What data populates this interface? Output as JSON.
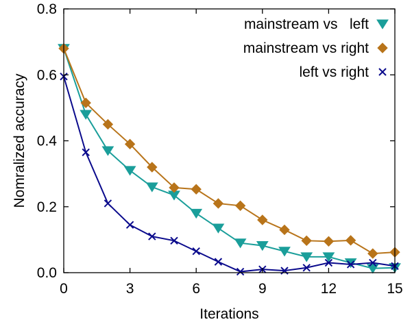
{
  "chart_data": {
    "type": "line",
    "xlabel": "Iterations",
    "ylabel": "Nomralized accuracy",
    "xlim": [
      0,
      15
    ],
    "ylim": [
      0,
      0.8
    ],
    "xticks": [
      0,
      3,
      6,
      9,
      12,
      15
    ],
    "xtick_labels": [
      "0",
      "3",
      "6",
      "9",
      "12",
      "15"
    ],
    "yticks": [
      0,
      0.2,
      0.4,
      0.6,
      0.8
    ],
    "ytick_labels": [
      "0.0",
      "0.2",
      "0.4",
      "0.6",
      "0.8"
    ],
    "grid": false,
    "legend_position": "top-right",
    "x": [
      0,
      1,
      2,
      3,
      4,
      5,
      6,
      7,
      8,
      9,
      10,
      11,
      12,
      13,
      14,
      15
    ],
    "series": [
      {
        "name": "mainstream vs   left",
        "color": "#1a9e9a",
        "marker": "triangle-down",
        "values": [
          0.68,
          0.48,
          0.37,
          0.31,
          0.26,
          0.235,
          0.18,
          0.135,
          0.09,
          0.082,
          0.065,
          0.048,
          0.048,
          0.03,
          0.013,
          0.015
        ]
      },
      {
        "name": "mainstream vs right",
        "color": "#b8741a",
        "marker": "diamond",
        "values": [
          0.68,
          0.515,
          0.45,
          0.39,
          0.32,
          0.258,
          0.253,
          0.21,
          0.203,
          0.16,
          0.13,
          0.097,
          0.095,
          0.098,
          0.058,
          0.062
        ]
      },
      {
        "name": "left vs right",
        "color": "#0a0a8c",
        "marker": "x",
        "values": [
          0.595,
          0.365,
          0.21,
          0.145,
          0.11,
          0.097,
          0.065,
          0.033,
          0.003,
          0.01,
          0.006,
          0.015,
          0.03,
          0.025,
          0.03,
          0.02
        ]
      }
    ]
  }
}
